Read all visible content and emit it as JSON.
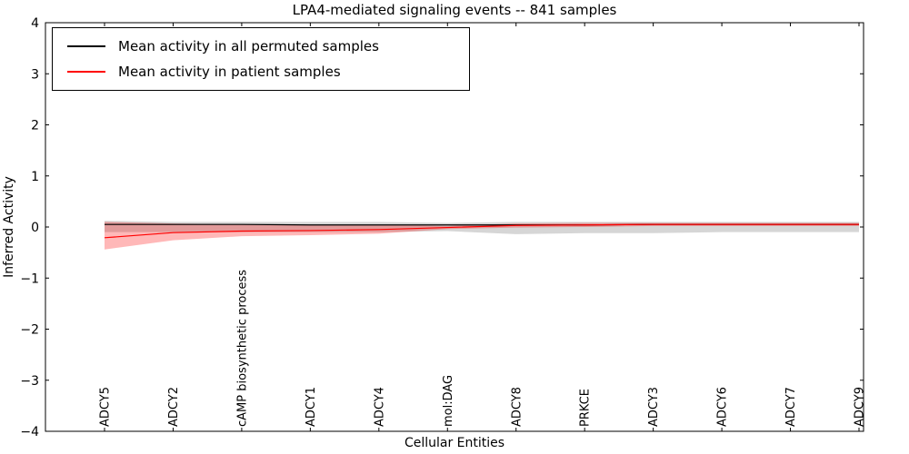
{
  "chart": {
    "title": "LPA4-mediated signaling events -- 841 samples",
    "xlabel": "Cellular Entities",
    "ylabel": "Inferred Activity"
  },
  "legend": {
    "entries": [
      {
        "label": "Mean activity in all permuted samples",
        "color": "#000000"
      },
      {
        "label": "Mean activity in patient samples",
        "color": "#ff0000"
      }
    ]
  },
  "chart_data": {
    "type": "line",
    "title": "LPA4-mediated signaling events -- 841 samples",
    "xlabel": "Cellular Entities",
    "ylabel": "Inferred Activity",
    "ylim": [
      -4,
      4
    ],
    "yticks": [
      -4,
      -3,
      -2,
      -1,
      0,
      1,
      2,
      3,
      4
    ],
    "grid": false,
    "legend_position": "upper left",
    "categories": [
      "ADCY5",
      "ADCY2",
      "cAMP biosynthetic process",
      "ADCY1",
      "ADCY4",
      "mol:DAG",
      "ADCY8",
      "PRKCE",
      "ADCY3",
      "ADCY6",
      "ADCY7",
      "ADCY9"
    ],
    "series": [
      {
        "name": "Mean activity in all permuted samples",
        "color": "#000000",
        "band_color": "#999999",
        "values": [
          0.05,
          0.05,
          0.05,
          0.04,
          0.04,
          0.04,
          0.04,
          0.04,
          0.05,
          0.05,
          0.05,
          0.05
        ],
        "band_upper": [
          0.12,
          0.1,
          0.1,
          0.1,
          0.1,
          0.08,
          0.1,
          0.1,
          0.1,
          0.1,
          0.1,
          0.1
        ],
        "band_lower": [
          -0.1,
          -0.1,
          -0.1,
          -0.1,
          -0.1,
          -0.08,
          -0.14,
          -0.12,
          -0.12,
          -0.1,
          -0.1,
          -0.1
        ]
      },
      {
        "name": "Mean activity in patient samples",
        "color": "#ff0000",
        "band_color": "#ff0000",
        "values": [
          -0.21,
          -0.11,
          -0.08,
          -0.07,
          -0.05,
          -0.01,
          0.03,
          0.04,
          0.05,
          0.05,
          0.05,
          0.05
        ],
        "band_upper": [
          0.1,
          0.07,
          0.05,
          0.04,
          0.04,
          0.02,
          0.07,
          0.08,
          0.08,
          0.08,
          0.08,
          0.08
        ],
        "band_lower": [
          -0.44,
          -0.26,
          -0.18,
          -0.16,
          -0.13,
          -0.04,
          -0.01,
          0.0,
          0.02,
          0.02,
          0.02,
          0.02
        ]
      }
    ]
  }
}
